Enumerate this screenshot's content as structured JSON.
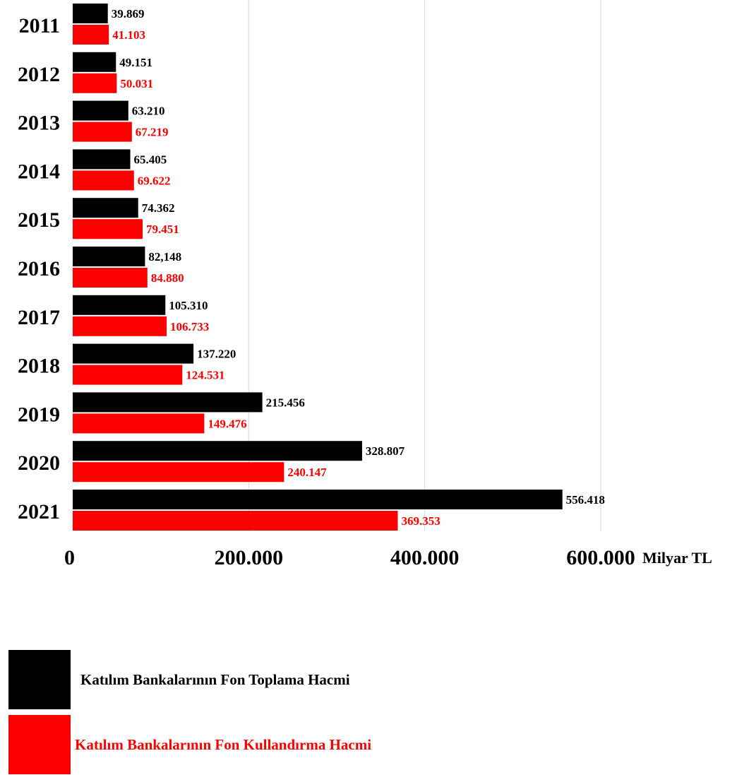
{
  "chart_data": {
    "type": "bar",
    "orientation": "horizontal",
    "categories": [
      "2011",
      "2012",
      "2013",
      "2014",
      "2015",
      "2016",
      "2017",
      "2018",
      "2019",
      "2020",
      "2021"
    ],
    "series": [
      {
        "name": "Katılım Bankalarının Fon Toplama Hacmi",
        "color": "#000000",
        "values": [
          39869,
          49151,
          63210,
          65405,
          74362,
          82148,
          105310,
          137220,
          215456,
          328807,
          556418
        ],
        "labels": [
          "39.869",
          "49.151",
          "63.210",
          "65.405",
          "74.362",
          "82,148",
          "105.310",
          "137.220",
          "215.456",
          "328.807",
          "556.418"
        ]
      },
      {
        "name": "Katılım Bankalarının Fon Kullandırma Hacmi",
        "color": "#ff0000",
        "values": [
          41103,
          50031,
          67219,
          69622,
          79451,
          84880,
          106733,
          124531,
          149476,
          240147,
          369353
        ],
        "labels": [
          "41.103",
          "50.031",
          "67.219",
          "69.622",
          "79.451",
          "84.880",
          "106.733",
          "124.531",
          "149.476",
          "240.147",
          "369.353"
        ]
      }
    ],
    "x_axis": {
      "range": [
        0,
        600000
      ],
      "ticks": [
        0,
        200000,
        400000,
        600000
      ],
      "tick_labels": [
        "0",
        "200.000",
        "400.000",
        "600.000"
      ],
      "unit": "Milyar TL"
    },
    "grid": "vertical",
    "legend_position": "bottom-left"
  }
}
